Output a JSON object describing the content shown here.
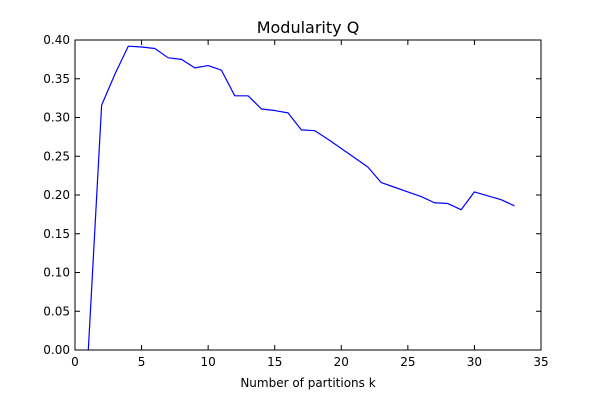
{
  "chart_data": {
    "type": "line",
    "title": "Modularity Q",
    "xlabel": "Number of partitions k",
    "ylabel": "",
    "xlim": [
      0,
      35
    ],
    "ylim": [
      0,
      0.4
    ],
    "xticks": [
      0,
      5,
      10,
      15,
      20,
      25,
      30,
      35
    ],
    "xtick_labels": [
      "0",
      "5",
      "10",
      "15",
      "20",
      "25",
      "30",
      "35"
    ],
    "yticks": [
      0,
      0.05,
      0.1,
      0.15,
      0.2,
      0.25,
      0.3,
      0.35,
      0.4
    ],
    "ytick_labels": [
      "0.00",
      "0.05",
      "0.10",
      "0.15",
      "0.20",
      "0.25",
      "0.30",
      "0.35",
      "0.40"
    ],
    "grid": false,
    "series": [
      {
        "color": "#0000ff",
        "x": [
          1,
          2,
          3,
          4,
          5,
          6,
          7,
          8,
          9,
          10,
          11,
          12,
          13,
          14,
          15,
          16,
          17,
          18,
          19,
          20,
          21,
          22,
          23,
          24,
          25,
          26,
          27,
          28,
          29,
          30,
          31,
          32,
          33
        ],
        "y": [
          0.0,
          0.316,
          0.356,
          0.392,
          0.391,
          0.389,
          0.377,
          0.375,
          0.364,
          0.367,
          0.361,
          0.328,
          0.328,
          0.311,
          0.309,
          0.306,
          0.284,
          0.283,
          0.272,
          0.26,
          0.248,
          0.236,
          0.216,
          0.21,
          0.204,
          0.198,
          0.19,
          0.189,
          0.181,
          0.204,
          0.199,
          0.194,
          0.186
        ]
      }
    ]
  }
}
